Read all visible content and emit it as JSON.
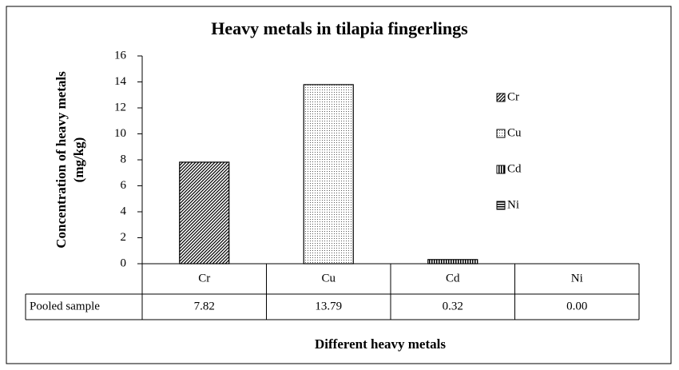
{
  "chart_data": {
    "type": "bar",
    "title": "Heavy metals in tilapia fingerlings",
    "ylabel": [
      "Concentration of heavy metals",
      "(mg/kg)"
    ],
    "xlabel": "Different heavy metals",
    "categories": [
      "Cr",
      "Cu",
      "Cd",
      "Ni"
    ],
    "series": [
      {
        "name": "Pooled sample",
        "color": "#000000",
        "values": [
          7.82,
          13.79,
          0.32,
          0.0
        ],
        "value_labels": [
          "7.82",
          "13.79",
          "0.32",
          "0.00"
        ]
      }
    ],
    "patterns": [
      "diagonal",
      "dots",
      "vertical",
      "horizontal"
    ],
    "ylim": [
      0,
      16
    ],
    "yticks": [
      0,
      2,
      4,
      6,
      8,
      10,
      12,
      14,
      16
    ],
    "legend": "right",
    "grid": false,
    "data_table": true
  }
}
